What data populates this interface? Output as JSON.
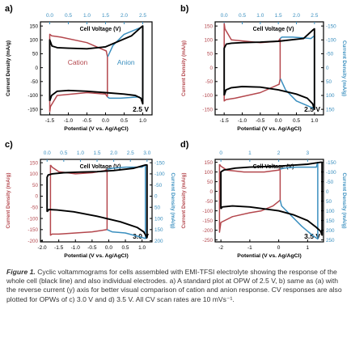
{
  "colors": {
    "cell": "#000000",
    "cation": "#b4474d",
    "anion": "#3a8fbf",
    "axis_left": "#b4474d",
    "axis_right": "#3a8fbf",
    "top_axis": "#3a8fbf"
  },
  "chart_data": [
    {
      "panel": "a)",
      "type": "line",
      "title": "Cell Voltage (V)",
      "xlabel": "Potential (V vs. Ag/AgCl)",
      "ylabel": "Current Density (mA/g)",
      "ylabel_right": "",
      "x_ticks": [
        -1.5,
        -1.0,
        -0.5,
        0.0,
        0.5,
        1.0
      ],
      "x_tick_labels": [
        "-1.5",
        "-1.0",
        "-0.5",
        "0.0",
        "0.5",
        "1.0"
      ],
      "y_ticks": [
        150,
        100,
        50,
        0,
        -50,
        -100,
        -150
      ],
      "y_tick_labels": [
        "150",
        "100",
        "50",
        "0",
        "-50",
        "-100",
        "-150"
      ],
      "top_ticks": [
        0.0,
        0.5,
        1.0,
        1.5,
        2.0,
        2.5
      ],
      "top_tick_labels": [
        "0.0",
        "0.5",
        "1.0",
        "1.5",
        "2.0",
        "2.5"
      ],
      "right_tick_labels": [],
      "xlim": [
        -1.75,
        1.25
      ],
      "ylim": [
        -170,
        165
      ],
      "top_xlim": [
        -0.25,
        2.75
      ],
      "annotation": "2.5 V",
      "labels": {
        "cation": "Cation",
        "anion": "Anion"
      },
      "series": [
        {
          "role": "cell",
          "axis": "top",
          "x": [
            0.0,
            0.05,
            0.2,
            0.5,
            1.0,
            1.5,
            2.0,
            2.3,
            2.45,
            2.5,
            2.5,
            2.45,
            2.2,
            1.5,
            1.0,
            0.5,
            0.2,
            0.06,
            0.0,
            0.0
          ],
          "y": [
            -120,
            -100,
            -85,
            -82,
            -85,
            -90,
            -95,
            -100,
            -110,
            -130,
            150,
            145,
            115,
            75,
            68,
            70,
            72,
            78,
            100,
            -120
          ]
        },
        {
          "role": "cation",
          "axis": "bottom",
          "x": [
            -1.5,
            -1.48,
            -1.3,
            -0.5,
            0.0,
            0.05,
            0.05,
            0.02,
            -0.5,
            -1.2,
            -1.45,
            -1.5,
            -1.5
          ],
          "y": [
            -160,
            -140,
            -100,
            -90,
            -95,
            -105,
            40,
            60,
            90,
            110,
            115,
            120,
            -160
          ]
        },
        {
          "role": "anion",
          "axis": "bottom",
          "x": [
            0.05,
            0.1,
            0.4,
            0.9,
            1.0,
            1.0,
            0.95,
            0.5,
            0.2,
            0.06
          ],
          "y": [
            -105,
            -110,
            -110,
            -105,
            -115,
            150,
            145,
            120,
            80,
            40
          ]
        }
      ]
    },
    {
      "panel": "b)",
      "type": "line",
      "title": "Cell Voltage (V)",
      "xlabel": "Potential (V vs. Ag/AgCl)",
      "ylabel": "Current Density (mA/g)",
      "ylabel_right": "Current Density (mA/g)",
      "x_ticks": [
        -1.5,
        -1.0,
        -0.5,
        0.0,
        0.5,
        1.0
      ],
      "x_tick_labels": [
        "-1.5",
        "-1.0",
        "-0.5",
        "0.0",
        "0.5",
        "1.0"
      ],
      "y_ticks": [
        -150,
        -100,
        -50,
        0,
        50,
        100,
        150
      ],
      "y_tick_labels": [
        "-150",
        "-100",
        "-50",
        "0",
        "50",
        "100",
        "150"
      ],
      "top_ticks": [
        0.0,
        0.5,
        1.0,
        1.5,
        2.0,
        2.5
      ],
      "top_tick_labels": [
        "0.0",
        "0.5",
        "1.0",
        "1.5",
        "2.0",
        "2.5"
      ],
      "right_tick_labels": [
        "150",
        "100",
        "50",
        "0",
        "-50",
        "-100",
        "-150"
      ],
      "xlim": [
        -1.75,
        1.25
      ],
      "ylim": [
        -170,
        165
      ],
      "top_xlim": [
        -0.25,
        2.75
      ],
      "annotation": "2.5 V",
      "labels": {
        "cation": "",
        "anion": ""
      },
      "series": [
        {
          "role": "cell",
          "axis": "top",
          "x": [
            0.0,
            0.05,
            0.2,
            0.5,
            1.0,
            1.5,
            2.0,
            2.3,
            2.45,
            2.5,
            2.5,
            2.45,
            2.2,
            1.5,
            1.0,
            0.5,
            0.2,
            0.06,
            0.0,
            0.0
          ],
          "y": [
            -100,
            -80,
            -72,
            -68,
            -70,
            -80,
            -95,
            -110,
            -130,
            -150,
            140,
            135,
            105,
            95,
            92,
            90,
            88,
            85,
            70,
            -100
          ]
        },
        {
          "role": "cation",
          "axis": "bottom",
          "x": [
            -1.5,
            -1.48,
            -1.3,
            -0.5,
            0.0,
            0.05,
            0.05,
            0.02,
            -0.5,
            -1.2,
            -1.45,
            -1.5,
            -1.5
          ],
          "y": [
            160,
            140,
            100,
            90,
            95,
            105,
            -40,
            -60,
            -90,
            -110,
            -115,
            -120,
            160
          ]
        },
        {
          "role": "anion",
          "axis": "bottom",
          "x": [
            0.05,
            0.1,
            0.4,
            0.9,
            1.0,
            1.0,
            0.95,
            0.5,
            0.2,
            0.06
          ],
          "y": [
            105,
            110,
            110,
            105,
            115,
            -150,
            -145,
            -120,
            -80,
            -40
          ]
        }
      ]
    },
    {
      "panel": "c)",
      "type": "line",
      "title": "Cell Voltage (V)",
      "xlabel": "Potential (V vs. Ag/AgCl)",
      "ylabel": "Current Density (mA/g)",
      "ylabel_right": "Current Density (mA/g)",
      "x_ticks": [
        -2.0,
        -1.5,
        -1.0,
        -0.5,
        0.0,
        0.5,
        1.0
      ],
      "x_tick_labels": [
        "-2.0",
        "-1.5",
        "-1.0",
        "-0.5",
        "0.0",
        "0.5",
        "1.0"
      ],
      "y_ticks": [
        -200,
        -150,
        -100,
        -50,
        0,
        50,
        100,
        150
      ],
      "y_tick_labels": [
        "-200",
        "-150",
        "-100",
        "-50",
        "0",
        "50",
        "100",
        "150"
      ],
      "top_ticks": [
        0.0,
        0.5,
        1.0,
        1.5,
        2.0,
        2.5,
        3.0
      ],
      "top_tick_labels": [
        "0.0",
        "0.5",
        "1.0",
        "1.5",
        "2.0",
        "2.5",
        "3.0"
      ],
      "right_tick_labels": [
        "200",
        "150",
        "100",
        "50",
        "0",
        "-50",
        "-100",
        "-150"
      ],
      "xlim": [
        -2.05,
        1.3
      ],
      "ylim": [
        -205,
        165
      ],
      "top_xlim": [
        -0.2,
        3.15
      ],
      "annotation": "3.0 V",
      "labels": {
        "cation": "",
        "anion": ""
      },
      "series": [
        {
          "role": "cell",
          "axis": "top",
          "x": [
            0.0,
            0.05,
            0.3,
            0.8,
            1.5,
            2.2,
            2.7,
            2.9,
            3.0,
            3.0,
            2.95,
            2.6,
            2.0,
            1.5,
            1.0,
            0.5,
            0.15,
            0.03,
            0.0,
            0.0
          ],
          "y": [
            -70,
            -60,
            -62,
            -70,
            -90,
            -115,
            -140,
            -160,
            -185,
            140,
            140,
            125,
            115,
            110,
            108,
            105,
            100,
            95,
            85,
            -70
          ]
        },
        {
          "role": "cation",
          "axis": "bottom",
          "x": [
            -1.75,
            -1.7,
            -1.5,
            -1.0,
            -0.5,
            -0.1,
            -0.05,
            -0.05,
            -0.5,
            -1.0,
            -1.5,
            -1.7,
            -1.75,
            -1.75
          ],
          "y": [
            140,
            130,
            110,
            100,
            105,
            115,
            120,
            -150,
            -160,
            -165,
            -170,
            -170,
            -175,
            140
          ]
        },
        {
          "role": "anion",
          "axis": "bottom",
          "x": [
            -0.05,
            0.1,
            0.5,
            1.0,
            1.1,
            1.1,
            1.0,
            0.5,
            0.1,
            -0.05
          ],
          "y": [
            120,
            125,
            130,
            130,
            140,
            -190,
            -185,
            -165,
            -160,
            -150
          ]
        }
      ]
    },
    {
      "panel": "d)",
      "type": "line",
      "title": "Cell Voltage (V)",
      "xlabel": "Potential (V vs. Ag/AgCl)",
      "ylabel": "Current Density (mA/g)",
      "ylabel_right": "Current Density (mA/g)",
      "x_ticks": [
        -2,
        -1,
        0,
        1
      ],
      "x_tick_labels": [
        "-2",
        "-1",
        "0",
        "1"
      ],
      "y_ticks": [
        -250,
        -200,
        -150,
        -100,
        -50,
        0,
        50,
        100,
        150
      ],
      "y_tick_labels": [
        "-250",
        "-200",
        "-150",
        "-100",
        "-50",
        "0",
        "50",
        "100",
        "150"
      ],
      "top_ticks": [
        0,
        1,
        2,
        3
      ],
      "top_tick_labels": [
        "0",
        "1",
        "2",
        "3"
      ],
      "right_tick_labels": [
        "250",
        "200",
        "150",
        "100",
        "50",
        "0",
        "-50",
        "-100",
        "-150"
      ],
      "xlim": [
        -2.2,
        1.55
      ],
      "ylim": [
        -260,
        165
      ],
      "top_xlim": [
        -0.2,
        3.55
      ],
      "annotation": "3.5 V",
      "labels": {
        "cation": "",
        "anion": ""
      },
      "series": [
        {
          "role": "cell",
          "axis": "top",
          "x": [
            0.0,
            0.05,
            0.4,
            1.0,
            1.5,
            2.0,
            2.5,
            3.0,
            3.3,
            3.45,
            3.5,
            3.5,
            3.45,
            3.0,
            2.5,
            2.0,
            1.0,
            0.5,
            0.1,
            0.0,
            0.0
          ],
          "y": [
            -90,
            -80,
            -75,
            -80,
            -90,
            -100,
            -120,
            -150,
            -185,
            -205,
            -225,
            150,
            150,
            140,
            135,
            130,
            125,
            120,
            110,
            100,
            -90
          ]
        },
        {
          "role": "cation",
          "axis": "bottom",
          "x": [
            -2.05,
            -2.0,
            -1.8,
            -1.2,
            -0.5,
            0.0,
            0.05,
            0.05,
            -0.2,
            -0.6,
            -1.0,
            -1.6,
            -2.0,
            -2.05,
            -2.05
          ],
          "y": [
            140,
            130,
            110,
            100,
            100,
            110,
            115,
            -45,
            -75,
            -100,
            -110,
            -130,
            -160,
            -210,
            140
          ]
        },
        {
          "role": "anion",
          "axis": "bottom",
          "x": [
            0.05,
            0.2,
            0.6,
            1.0,
            1.3,
            1.35,
            1.35,
            1.2,
            0.8,
            0.4,
            0.1,
            0.05
          ],
          "y": [
            115,
            120,
            125,
            125,
            125,
            150,
            -245,
            -230,
            -180,
            -120,
            -75,
            -45
          ]
        }
      ]
    }
  ],
  "caption": {
    "label": "Figure 1.",
    "text": " Cyclic voltammograms for cells assembled with EMI-TFSI electrolyte showing the response of the whole cell (black line) and also individual electrodes. a) A standard plot at OPW of 2.5 V, b) same as (a) with the reverse current (y) axis for better visual comparison of cation and anion response. CV responses are also plotted for OPWs of c) 3.0 V and d) 3.5 V. All CV scan rates are 10 mVs⁻¹."
  }
}
